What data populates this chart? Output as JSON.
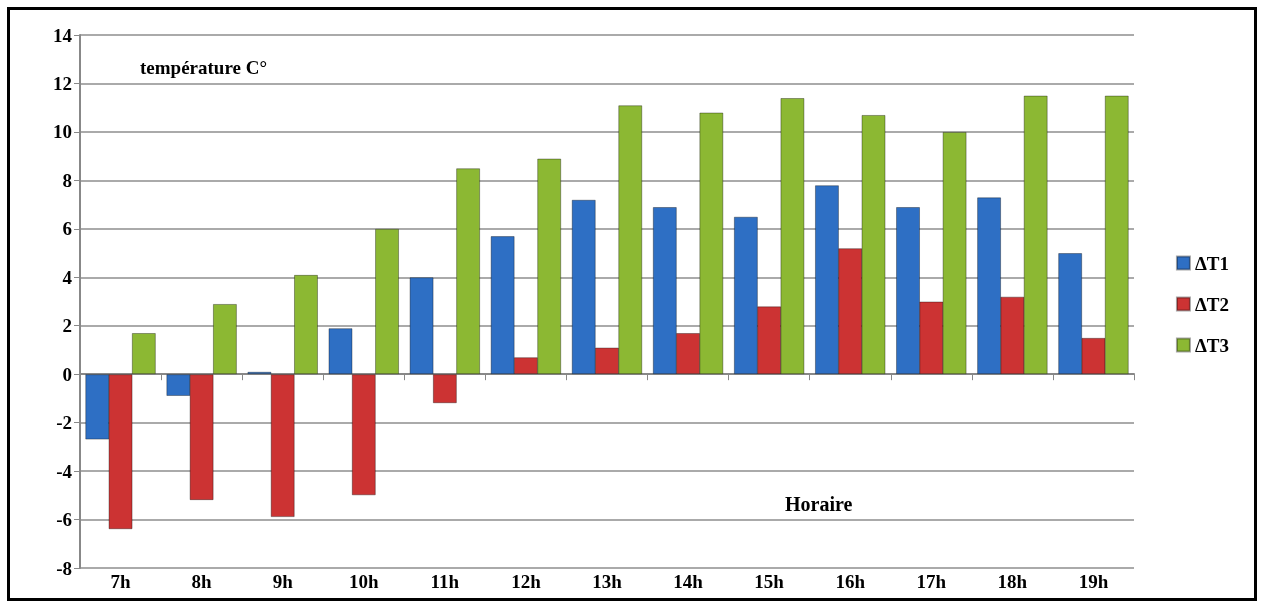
{
  "chart_data": {
    "type": "bar",
    "xlabel": "Horaire",
    "ylabel": "température C°",
    "categories": [
      "7h",
      "8h",
      "9h",
      "10h",
      "11h",
      "12h",
      "13h",
      "14h",
      "15h",
      "16h",
      "17h",
      "18h",
      "19h"
    ],
    "series": [
      {
        "name": "ΔT1",
        "color": "#2e6fc4",
        "values": [
          -2.7,
          -0.9,
          0.1,
          1.9,
          4.0,
          5.7,
          7.2,
          6.9,
          6.5,
          7.8,
          6.9,
          7.3,
          5.0
        ]
      },
      {
        "name": "ΔT2",
        "color": "#cc3333",
        "values": [
          -6.4,
          -5.2,
          -5.9,
          -5.0,
          -1.2,
          0.7,
          1.1,
          1.7,
          2.8,
          5.2,
          3.0,
          3.2,
          1.5
        ]
      },
      {
        "name": "ΔT3",
        "color": "#8cb833",
        "values": [
          1.7,
          2.9,
          4.1,
          6.0,
          8.5,
          8.9,
          11.1,
          10.8,
          11.4,
          10.7,
          10.0,
          11.5,
          11.5
        ]
      }
    ],
    "ylim": [
      -8,
      14
    ],
    "yticks": [
      -8,
      -6,
      -4,
      -2,
      0,
      2,
      4,
      6,
      8,
      10,
      12,
      14
    ],
    "grid": "y",
    "legend": "right"
  }
}
